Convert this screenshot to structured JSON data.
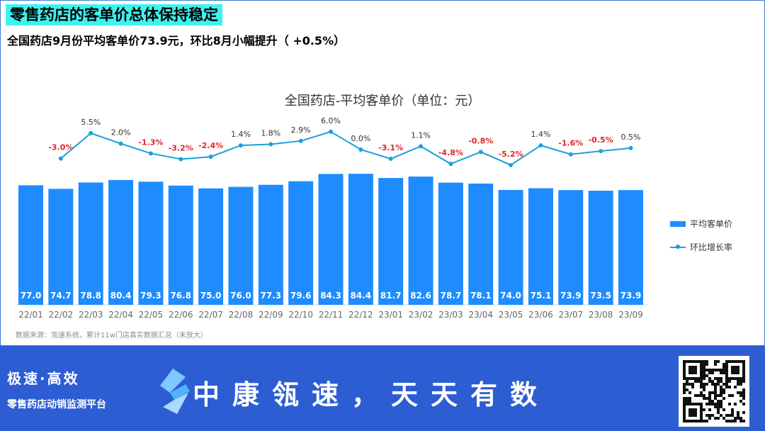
{
  "header": {
    "title": "零售药店的客单价总体保持稳定",
    "subtitle": "全国药店9月份平均客单价73.9元，环比8月小幅提升（ +0.5%）"
  },
  "source_note": "数据来源：瓴速系统，累计11w门店真实数据汇总（未放大）",
  "colors": {
    "bar": "#1e8cff",
    "line": "#1aa0d8",
    "negative": "#e0262b",
    "footer": "#2d5dd3",
    "highlight": "#3ff2f0"
  },
  "chart_data": {
    "type": "bar",
    "title": "全国药店-平均客单价（单位：元）",
    "categories": [
      "22/01",
      "22/02",
      "22/03",
      "22/04",
      "22/05",
      "22/06",
      "22/07",
      "22/08",
      "22/09",
      "22/10",
      "22/11",
      "22/12",
      "23/01",
      "23/02",
      "23/03",
      "23/04",
      "23/05",
      "23/06",
      "23/07",
      "23/08",
      "23/09"
    ],
    "series": [
      {
        "name": "平均客单价",
        "type": "bar",
        "values": [
          77.0,
          74.7,
          78.8,
          80.4,
          79.3,
          76.8,
          75.0,
          76.0,
          77.3,
          79.6,
          84.3,
          84.4,
          81.7,
          82.6,
          78.7,
          78.1,
          74.0,
          75.1,
          73.9,
          73.5,
          73.9
        ]
      },
      {
        "name": "环比增长率",
        "type": "line",
        "values": [
          null,
          -3.0,
          5.5,
          2.0,
          -1.3,
          -3.2,
          -2.4,
          1.4,
          1.8,
          2.9,
          6.0,
          0.0,
          -3.1,
          1.1,
          -4.8,
          -0.8,
          -5.2,
          1.4,
          -1.6,
          -0.5,
          0.5
        ]
      }
    ],
    "legend_position": "right",
    "grid": false
  },
  "footer": {
    "slogan_top": "极速·高效",
    "slogan_bottom": "零售药店动销监测平台",
    "tagline": "中康瓴速，天天有数",
    "qr_icon": "qr-code-icon"
  }
}
